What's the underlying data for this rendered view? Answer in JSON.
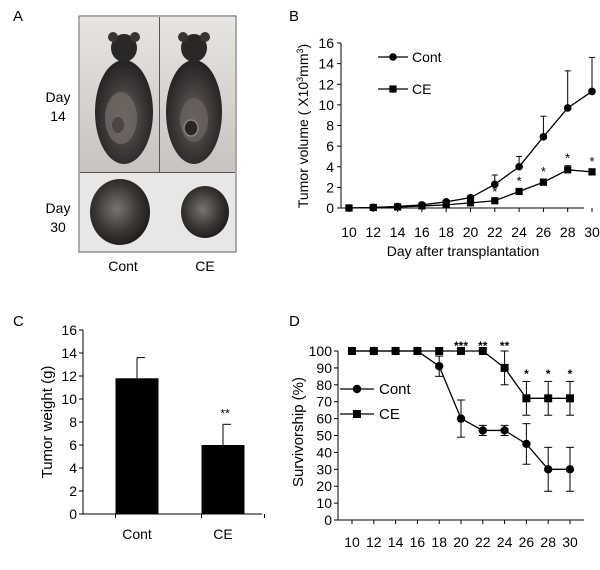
{
  "figure": {
    "panel_letters": [
      "A",
      "B",
      "C",
      "D"
    ],
    "photo_panel": {
      "rows": [
        "Day\n14",
        "Day\n30"
      ],
      "row_labels": [
        [
          "Day",
          "14"
        ],
        [
          "Day",
          "30"
        ]
      ],
      "columns": [
        "Cont",
        "CE"
      ],
      "images": [
        "mouse-photo Cont day 14",
        "mouse-photo CE day 14",
        "tumor-photo Cont day 30",
        "tumor-photo CE day 30"
      ]
    }
  },
  "chart_data": [
    {
      "panel": "B",
      "type": "line",
      "title": "",
      "xlabel": "Day after transplantation",
      "ylabel_parts": [
        "Tumor volume ( X10",
        "3",
        "mm",
        "3",
        ")"
      ],
      "ylabel": "Tumor volume ( X10³mm³)",
      "x": [
        10,
        12,
        14,
        16,
        18,
        20,
        22,
        24,
        26,
        28,
        30
      ],
      "xlim": [
        10,
        30
      ],
      "ylim": [
        0,
        16
      ],
      "yticks": [
        0,
        2,
        4,
        6,
        8,
        10,
        12,
        14,
        16
      ],
      "legend": "top-left",
      "series": [
        {
          "name": "Cont",
          "marker": "circle",
          "values": [
            0,
            0.05,
            0.15,
            0.3,
            0.6,
            1.0,
            2.3,
            4.0,
            6.9,
            9.7,
            11.3
          ],
          "error": [
            0,
            0,
            0,
            0.05,
            0.1,
            0.2,
            0.9,
            1.0,
            2.0,
            3.6,
            3.3
          ]
        },
        {
          "name": "CE",
          "marker": "square",
          "values": [
            0,
            0.05,
            0.1,
            0.2,
            0.3,
            0.5,
            0.7,
            1.6,
            2.5,
            3.7,
            3.5
          ],
          "error": [
            0,
            0,
            0,
            0.05,
            0.05,
            0.1,
            0.15,
            0.3,
            0.3,
            0.4,
            0.3
          ]
        }
      ],
      "annotations": [
        {
          "x": 22,
          "text": "*"
        },
        {
          "x": 24,
          "text": "*"
        },
        {
          "x": 26,
          "text": "*"
        },
        {
          "x": 28,
          "text": "*"
        },
        {
          "x": 30,
          "text": "*"
        }
      ]
    },
    {
      "panel": "C",
      "type": "bar",
      "title": "",
      "xlabel": "",
      "ylabel": "Tumor weight (g)",
      "categories": [
        "Cont",
        "CE"
      ],
      "values": [
        11.8,
        6.0
      ],
      "error": [
        1.8,
        1.8
      ],
      "ylim": [
        0,
        16
      ],
      "yticks": [
        0,
        2,
        4,
        6,
        8,
        10,
        12,
        14,
        16
      ],
      "annotations": [
        {
          "category": "CE",
          "text": "**"
        }
      ]
    },
    {
      "panel": "D",
      "type": "line",
      "title": "",
      "xlabel": "",
      "ylabel": "Survivorship (%)",
      "x": [
        10,
        12,
        14,
        16,
        18,
        20,
        22,
        24,
        26,
        28,
        30
      ],
      "xlim": [
        10,
        30
      ],
      "ylim": [
        0,
        100
      ],
      "yticks": [
        0,
        10,
        20,
        30,
        40,
        50,
        60,
        70,
        80,
        90,
        100
      ],
      "legend": "left",
      "series": [
        {
          "name": "Cont",
          "marker": "circle",
          "values": [
            100,
            100,
            100,
            100,
            91,
            60,
            53,
            53,
            45,
            30,
            30
          ],
          "error": [
            0,
            0,
            0,
            0,
            6,
            11,
            3,
            3,
            12,
            13,
            13
          ]
        },
        {
          "name": "CE",
          "marker": "square",
          "values": [
            100,
            100,
            100,
            100,
            100,
            100,
            100,
            90,
            72,
            72,
            72
          ],
          "error": [
            0,
            0,
            0,
            0,
            0,
            0,
            0,
            10,
            10,
            10,
            10
          ]
        }
      ],
      "annotations": [
        {
          "x": 20,
          "text": "***"
        },
        {
          "x": 22,
          "text": "**"
        },
        {
          "x": 24,
          "text": "**"
        },
        {
          "x": 26,
          "text": "*"
        },
        {
          "x": 28,
          "text": "*"
        },
        {
          "x": 30,
          "text": "*"
        }
      ]
    }
  ]
}
